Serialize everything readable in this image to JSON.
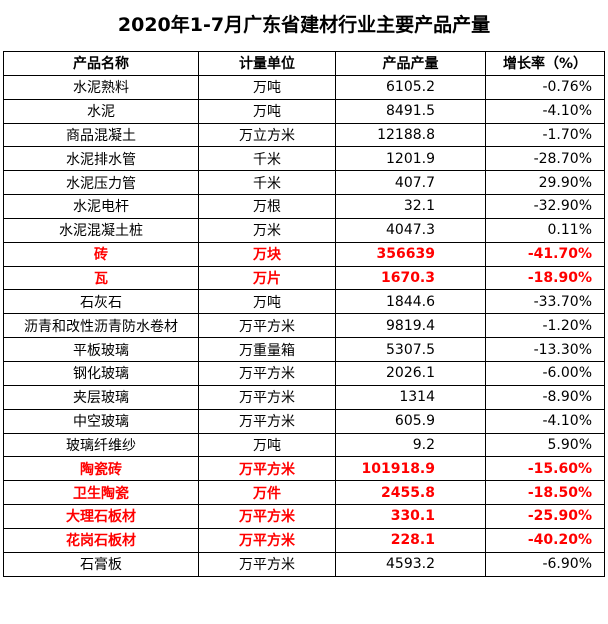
{
  "title": "2020年1-7月广东省建材行业主要产品产量",
  "headers": [
    "产品名称",
    "计量单位",
    "产品产量",
    "增长率（%）"
  ],
  "rows": [
    {
      "name": "水泥熟料",
      "unit": "万吨",
      "output": "6105.2",
      "growth": "-0.76%",
      "highlight": false
    },
    {
      "name": "水泥",
      "unit": "万吨",
      "output": "8491.5",
      "growth": "-4.10%",
      "highlight": false
    },
    {
      "name": "商品混凝土",
      "unit": "万立方米",
      "output": "12188.8",
      "growth": "-1.70%",
      "highlight": false
    },
    {
      "name": "水泥排水管",
      "unit": "千米",
      "output": "1201.9",
      "growth": "-28.70%",
      "highlight": false
    },
    {
      "name": "水泥压力管",
      "unit": "千米",
      "output": "407.7",
      "growth": "29.90%",
      "highlight": false
    },
    {
      "name": "水泥电杆",
      "unit": "万根",
      "output": "32.1",
      "growth": "-32.90%",
      "highlight": false
    },
    {
      "name": "水泥混凝土桩",
      "unit": "万米",
      "output": "4047.3",
      "growth": "0.11%",
      "highlight": false
    },
    {
      "name": "砖",
      "unit": "万块",
      "output": "356639",
      "growth": "-41.70%",
      "highlight": true
    },
    {
      "name": "瓦",
      "unit": "万片",
      "output": "1670.3",
      "growth": "-18.90%",
      "highlight": true
    },
    {
      "name": "石灰石",
      "unit": "万吨",
      "output": "1844.6",
      "growth": "-33.70%",
      "highlight": false
    },
    {
      "name": "沥青和改性沥青防水卷材",
      "unit": "万平方米",
      "output": "9819.4",
      "growth": "-1.20%",
      "highlight": false
    },
    {
      "name": "平板玻璃",
      "unit": "万重量箱",
      "output": "5307.5",
      "growth": "-13.30%",
      "highlight": false
    },
    {
      "name": "钢化玻璃",
      "unit": "万平方米",
      "output": "2026.1",
      "growth": "-6.00%",
      "highlight": false
    },
    {
      "name": "夹层玻璃",
      "unit": "万平方米",
      "output": "1314",
      "growth": "-8.90%",
      "highlight": false
    },
    {
      "name": "中空玻璃",
      "unit": "万平方米",
      "output": "605.9",
      "growth": "-4.10%",
      "highlight": false
    },
    {
      "name": "玻璃纤维纱",
      "unit": "万吨",
      "output": "9.2",
      "growth": "5.90%",
      "highlight": false
    },
    {
      "name": "陶瓷砖",
      "unit": "万平方米",
      "output": "101918.9",
      "growth": "-15.60%",
      "highlight": true
    },
    {
      "name": "卫生陶瓷",
      "unit": "万件",
      "output": "2455.8",
      "growth": "-18.50%",
      "highlight": true
    },
    {
      "name": "大理石板材",
      "unit": "万平方米",
      "output": "330.1",
      "growth": "-25.90%",
      "highlight": true
    },
    {
      "name": "花岗石板材",
      "unit": "万平方米",
      "output": "228.1",
      "growth": "-40.20%",
      "highlight": true
    },
    {
      "name": "石膏板",
      "unit": "万平方米",
      "output": "4593.2",
      "growth": "-6.90%",
      "highlight": false
    }
  ],
  "colors": {
    "highlight": "#ff0000",
    "text": "#000000",
    "border": "#000000"
  }
}
